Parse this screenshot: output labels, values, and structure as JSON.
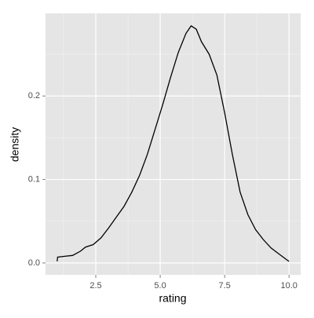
{
  "chart_data": {
    "type": "line",
    "x_label": "rating",
    "y_label": "density",
    "x": [
      1.0,
      1.02,
      1.3,
      1.6,
      1.9,
      2.1,
      2.4,
      2.7,
      3.0,
      3.3,
      3.6,
      3.9,
      4.2,
      4.5,
      4.8,
      5.1,
      5.4,
      5.7,
      6.0,
      6.2,
      6.4,
      6.6,
      6.9,
      7.2,
      7.5,
      7.8,
      8.1,
      8.4,
      8.7,
      9.0,
      9.3,
      9.6,
      9.9,
      10.0
    ],
    "series": [
      {
        "name": "density",
        "color": "#000000",
        "values": [
          0.002,
          0.007,
          0.008,
          0.009,
          0.014,
          0.019,
          0.022,
          0.03,
          0.042,
          0.055,
          0.068,
          0.085,
          0.105,
          0.13,
          0.16,
          0.19,
          0.222,
          0.252,
          0.275,
          0.284,
          0.28,
          0.265,
          0.25,
          0.225,
          0.18,
          0.13,
          0.085,
          0.058,
          0.04,
          0.028,
          0.018,
          0.011,
          0.004,
          0.002
        ]
      }
    ],
    "xlim": [
      0.55,
      10.45
    ],
    "ylim": [
      -0.0142,
      0.299
    ],
    "xticks": [
      2.5,
      {
        "value": 5,
        "label": "5.0"
      },
      7.5,
      {
        "value": 10,
        "label": "10.0"
      }
    ],
    "yticks": [
      {
        "value": 0,
        "label": "0.0"
      },
      0.1,
      0.2
    ],
    "xminor": [
      1.25,
      3.75,
      6.25,
      8.75
    ],
    "yminor": [
      0.05,
      0.15,
      0.25
    ],
    "grid": true,
    "panel_color": "#e5e5e5"
  }
}
